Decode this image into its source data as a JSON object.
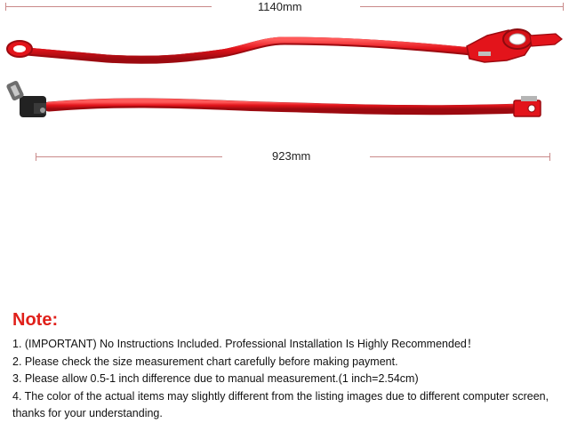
{
  "dimensions": {
    "top_length": "1140mm",
    "bottom_length": "923mm"
  },
  "product": {
    "color": "#e3141b",
    "image_icon": "shifter-linkage-rods-icon"
  },
  "note": {
    "title": "Note:",
    "items": [
      "1. (IMPORTANT) No Instructions Included. Professional Installation Is Highly Recommended！",
      "2. Please check the size measurement chart carefully before making payment.",
      "3. Please allow 0.5-1 inch difference due to manual measurement.(1 inch=2.54cm)",
      "4. The color of the actual items may slightly different from the listing images due to different computer screen, thanks for your understanding."
    ]
  }
}
